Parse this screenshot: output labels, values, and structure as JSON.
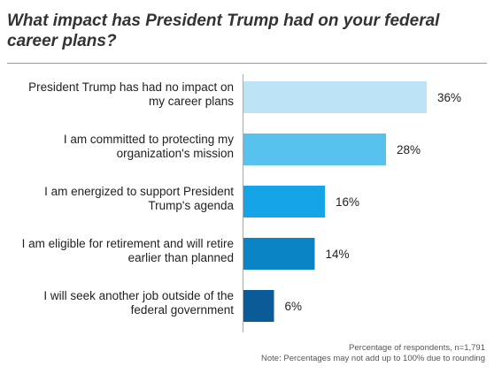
{
  "chart_data": {
    "type": "bar",
    "orientation": "horizontal",
    "title": "What impact has President Trump had on your federal career plans?",
    "categories": [
      [
        "President Trump has had no impact on",
        "my career plans"
      ],
      [
        "I am committed to protecting my",
        "organization's mission"
      ],
      [
        "I am energized to support President",
        "Trump's agenda"
      ],
      [
        "I am eligible for retirement and will retire",
        "earlier than planned"
      ],
      [
        "I will seek another job outside of the",
        "federal government"
      ]
    ],
    "values": [
      36,
      28,
      16,
      14,
      6
    ],
    "value_labels": [
      "36%",
      "28%",
      "16%",
      "14%",
      "6%"
    ],
    "bar_colors": [
      "#bde3f7",
      "#57c2ee",
      "#15a4e6",
      "#0b84c6",
      "#0a5b97"
    ],
    "xlim": [
      0,
      36
    ],
    "grid": false,
    "legend": "none"
  },
  "footnotes": {
    "line1": "Percentage of respondents, n=1,791",
    "line2": "Note: Percentages may not add up to 100% due to rounding"
  }
}
